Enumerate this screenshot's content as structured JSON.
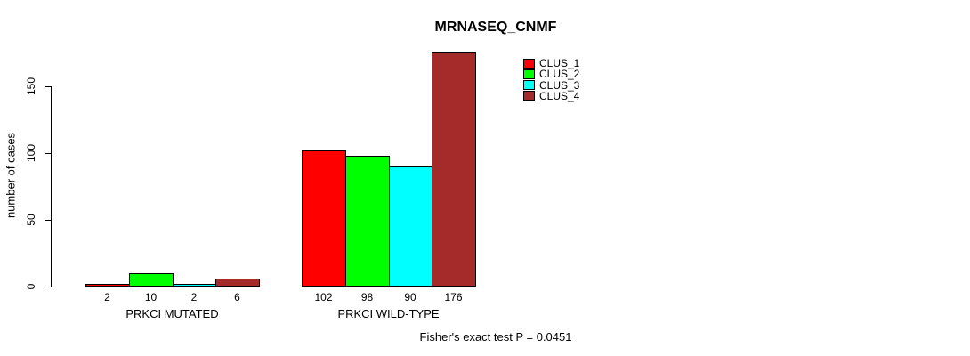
{
  "chart_data": {
    "type": "bar",
    "title": "MRNASEQ_CNMF",
    "ylabel": "number of cases",
    "xlabel": "",
    "categories": [
      "PRKCI MUTATED",
      "PRKCI WILD-TYPE"
    ],
    "series": [
      {
        "name": "CLUS_1",
        "color": "#FF0000",
        "values": [
          2,
          102
        ]
      },
      {
        "name": "CLUS_2",
        "color": "#00FF00",
        "values": [
          10,
          98
        ]
      },
      {
        "name": "CLUS_3",
        "color": "#00FFFF",
        "values": [
          2,
          90
        ]
      },
      {
        "name": "CLUS_4",
        "color": "#A52A2A",
        "values": [
          6,
          176
        ]
      }
    ],
    "yticks": [
      0,
      50,
      100,
      150
    ],
    "ylim": [
      0,
      180
    ],
    "grid": false,
    "show_bar_values": true,
    "legend_position": "top-right",
    "legend_entries": [
      "CLUS_1",
      "CLUS_2",
      "CLUS_3",
      "CLUS_4"
    ],
    "annotation": "Fisher's exact test P = 0.0451",
    "bar_border_color": "#000000"
  }
}
